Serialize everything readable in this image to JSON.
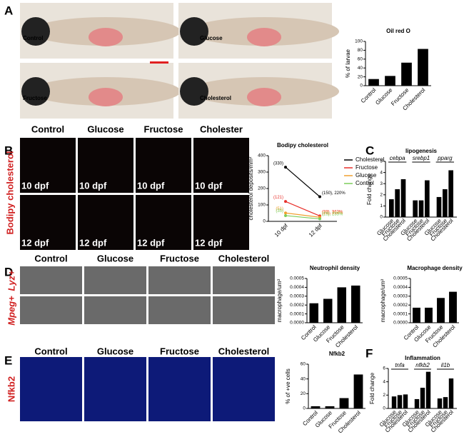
{
  "figure": {
    "panel_labels": [
      "A",
      "B",
      "C",
      "D",
      "E",
      "F"
    ],
    "a_labels": [
      "Control",
      "Glucose",
      "Fructose",
      "Cholesterol"
    ],
    "b_headers": [
      "Control",
      "Glucose",
      "Fructose",
      "Cholester"
    ],
    "b_stage_labels": [
      "10 dpf",
      "12 dpf"
    ],
    "b_row_label": "Bodipy cholesterol",
    "d_headers": [
      "Control",
      "Glucose",
      "Fructose",
      "Cholesterol"
    ],
    "d_row_labels": [
      "Lyz+",
      "Mpeg+"
    ],
    "e_headers": [
      "Control",
      "Glucose",
      "Fructose",
      "Cholesterol"
    ],
    "e_row_label": "Nfkb2"
  },
  "chart_data": [
    {
      "type": "bar",
      "title": "Oil red O",
      "ylabel": "% of larvae",
      "categories": [
        "Control",
        "Glucose",
        "Fructose",
        "Cholesterol"
      ],
      "values": [
        15,
        22,
        52,
        83
      ],
      "color": "#000000",
      "ylim": [
        0,
        100
      ],
      "yticks": [
        0,
        20,
        40,
        60,
        80,
        100
      ]
    },
    {
      "type": "line",
      "title": "Bodipy cholesterol",
      "ylabel": "cholesterol deposits/mm²",
      "categories": [
        "10 dpf",
        "12 dpf"
      ],
      "series": [
        {
          "name": "Cholesterol",
          "color": "#000000",
          "values": [
            330,
            150
          ],
          "value_labels": [
            "(330)",
            "(150), 220%"
          ]
        },
        {
          "name": "Fructose",
          "color": "#e8302a",
          "values": [
            121,
            33
          ],
          "value_labels": [
            "(121)",
            "(33), 363%"
          ]
        },
        {
          "name": "Glucose",
          "color": "#f0a030",
          "values": [
            51,
            25
          ],
          "value_labels": [
            "(51)",
            "(25), 204%"
          ]
        },
        {
          "name": "Control",
          "color": "#7ccd5a",
          "values": [
            35,
            15
          ],
          "value_labels": [
            "(35)",
            "(15), 233%"
          ]
        }
      ],
      "ylim": [
        0,
        400
      ],
      "yticks": [
        0,
        100,
        200,
        300,
        400
      ],
      "legend": "right"
    },
    {
      "type": "bar",
      "title": "lipogenesis",
      "ylabel": "Fold change",
      "categories": [
        "cebpa",
        "srebp1",
        "pparg"
      ],
      "series": [
        {
          "name": "Glucose",
          "color": "#000000",
          "values": [
            1.6,
            1.5,
            1.8
          ]
        },
        {
          "name": "Fructose",
          "color": "#000000",
          "values": [
            2.5,
            1.5,
            2.5
          ]
        },
        {
          "name": "Cholesterol",
          "color": "#000000",
          "values": [
            3.4,
            3.3,
            4.2
          ]
        }
      ],
      "ylim": [
        0,
        5
      ],
      "yticks": [
        0,
        1,
        2,
        3,
        4,
        5
      ]
    },
    {
      "type": "bar",
      "title": "Neutrophil density",
      "ylabel": "macrophage/um²",
      "categories": [
        "Control",
        "Glucose",
        "Fructose",
        "Cholesterol"
      ],
      "values": [
        0.00022,
        0.00027,
        0.0004,
        0.00042
      ],
      "color": "#000000",
      "ylim": [
        0,
        0.0005
      ],
      "yticks": [
        {
          "value": 0,
          "label": "0.0000"
        },
        {
          "value": 0.0001,
          "label": "0.0001"
        },
        {
          "value": 0.0002,
          "label": "0.0002"
        },
        {
          "value": 0.0003,
          "label": "0.0003"
        },
        {
          "value": 0.0004,
          "label": "0.0004"
        },
        {
          "value": 0.0005,
          "label": "0.0005"
        }
      ]
    },
    {
      "type": "bar",
      "title": "Macrophage density",
      "ylabel": "macrophage/um²",
      "categories": [
        "Control",
        "Glucose",
        "Fructose",
        "Cholesterol"
      ],
      "values": [
        0.00017,
        0.00017,
        0.00028,
        0.00035
      ],
      "color": "#000000",
      "ylim": [
        0,
        0.0005
      ],
      "yticks": [
        {
          "value": 0,
          "label": "0.0000"
        },
        {
          "value": 0.0001,
          "label": "0.0001"
        },
        {
          "value": 0.0002,
          "label": "0.0002"
        },
        {
          "value": 0.0003,
          "label": "0.0003"
        },
        {
          "value": 0.0004,
          "label": "0.0004"
        },
        {
          "value": 0.0005,
          "label": "0.0005"
        }
      ]
    },
    {
      "type": "bar",
      "title": "Nfkb2",
      "ylabel": "% of +ve cells",
      "categories": [
        "Control",
        "Glucose",
        "Fructose",
        "Cholesterol"
      ],
      "values": [
        3,
        3,
        14,
        46
      ],
      "color": "#000000",
      "ylim": [
        0,
        60
      ],
      "yticks": [
        0,
        20,
        40,
        60
      ]
    },
    {
      "type": "bar",
      "title": "Inflammation",
      "ylabel": "Fold change",
      "categories": [
        "tnfa",
        "nfkb2",
        "il1b"
      ],
      "series": [
        {
          "name": "Glucose",
          "color": "#000000",
          "values": [
            1.8,
            1.4,
            1.5
          ]
        },
        {
          "name": "Fructose",
          "color": "#000000",
          "values": [
            2.0,
            3.1,
            1.7
          ]
        },
        {
          "name": "Cholesterol",
          "color": "#000000",
          "values": [
            2.1,
            5.5,
            4.5
          ]
        }
      ],
      "ylim": [
        0,
        6
      ],
      "yticks": [
        0,
        2,
        4,
        6
      ]
    }
  ]
}
